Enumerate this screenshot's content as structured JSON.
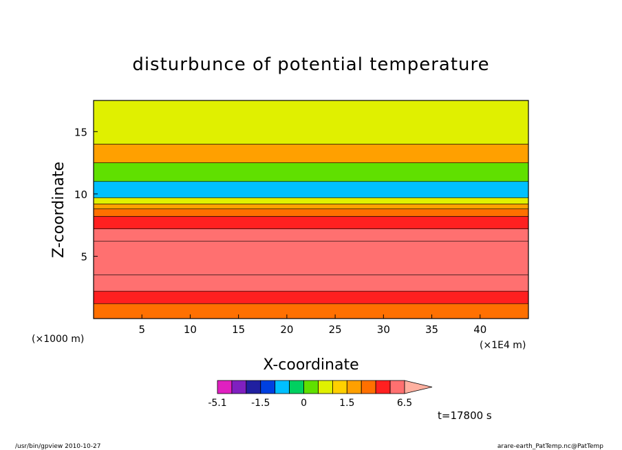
{
  "chart_data": {
    "type": "heatmap",
    "title": "disturbunce of potential temperature",
    "xlabel": "X-coordinate",
    "ylabel": "Z-coordinate",
    "x_unit_label": "(×1E4 m)",
    "y_unit_label": "(×1000 m)",
    "x_ticks": [
      5,
      10,
      15,
      20,
      25,
      30,
      35,
      40
    ],
    "y_ticks": [
      5,
      10,
      15
    ],
    "xlim": [
      0,
      45
    ],
    "ylim": [
      0,
      17.5
    ],
    "colorbar": {
      "levels": [
        -5.1,
        -3.5,
        -2.5,
        -1.5,
        -1.0,
        -0.5,
        0,
        0.5,
        1.0,
        1.5,
        2.5,
        3.5,
        4.5,
        6.5
      ],
      "tick_labels": [
        "-5.1",
        "-1.5",
        "0",
        "1.5",
        "6.5"
      ],
      "colors": [
        "#e020c0",
        "#8020c0",
        "#2020a0",
        "#0040e0",
        "#00c0ff",
        "#00d060",
        "#60e000",
        "#e0f000",
        "#ffd000",
        "#ffa000",
        "#ff7000",
        "#ff2020",
        "#ff7070",
        "#ffb0a0"
      ]
    },
    "field_bands": [
      {
        "z": [
          0,
          1.2
        ],
        "value": 3.0
      },
      {
        "z": [
          1.2,
          2.2
        ],
        "value": 4.0
      },
      {
        "z": [
          2.2,
          3.5
        ],
        "value": 5.0
      },
      {
        "z": [
          3.5,
          6.2
        ],
        "value": 6.0
      },
      {
        "z": [
          6.2,
          7.2
        ],
        "value": 5.0
      },
      {
        "z": [
          7.2,
          8.2
        ],
        "value": 4.0
      },
      {
        "z": [
          8.2,
          8.8
        ],
        "value": 2.5
      },
      {
        "z": [
          8.8,
          9.2
        ],
        "value": 1.5
      },
      {
        "z": [
          9.2,
          9.7
        ],
        "value": 0.5
      },
      {
        "z": [
          9.7,
          11.0
        ],
        "value": -1.0
      },
      {
        "z": [
          11.0,
          12.5
        ],
        "value": 0.0
      },
      {
        "z": [
          12.5,
          14.0
        ],
        "value": 1.5
      },
      {
        "z": [
          14.0,
          17.5
        ],
        "value": 0.5
      }
    ],
    "time_label": "t=17800 s"
  },
  "footer": {
    "left": "/usr/bin/gpview  2010-10-27",
    "right": "arare-earth_PatTemp.nc@PatTemp"
  }
}
